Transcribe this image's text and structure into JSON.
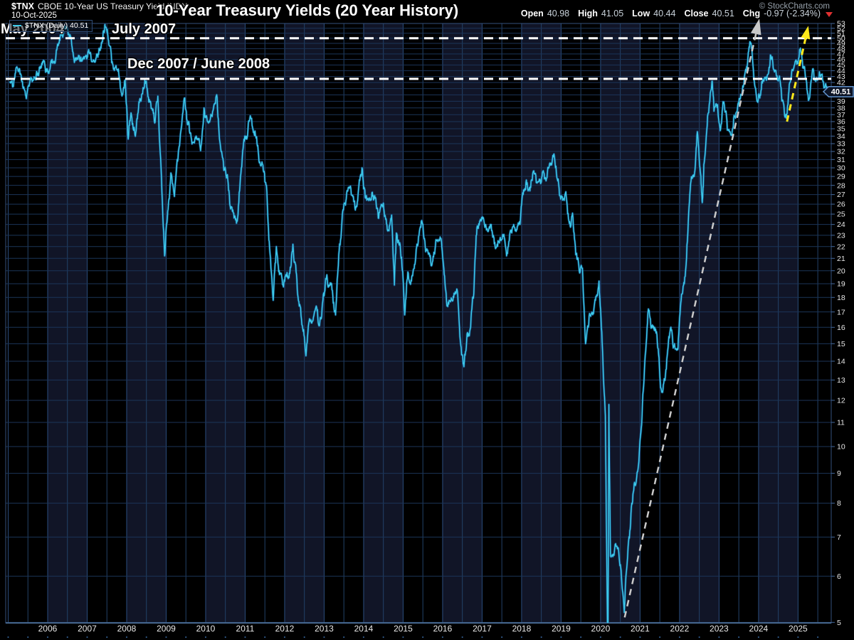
{
  "header": {
    "symbol": "$TNX",
    "description": "CBOE 10-Year US Treasury Yield INDX",
    "date": "10-Oct-2025",
    "legend_label": "$TNX (Daily) 40.51"
  },
  "title": "10-Year Treasury Yields (20 Year History)",
  "credit": "© StockCharts.com",
  "quote": {
    "open_label": "Open",
    "open_value": "40.98",
    "high_label": "High",
    "high_value": "41.05",
    "low_label": "Low",
    "low_value": "40.44",
    "close_label": "Close",
    "close_value": "40.51",
    "chg_label": "Chg",
    "chg_value": "-0.97 (-2.34%)"
  },
  "colors": {
    "background": "#000000",
    "band": "#111527",
    "grid_v_year": "#2a4d7d",
    "grid_v_half": "#234268",
    "grid_h": "#1b3558",
    "frame": "#33517c",
    "axis_bottom": "#587fae",
    "tick": "#44699c",
    "tick_label": "#e8e8e8",
    "line": "#3cc9e8",
    "line_glow": "#1866b4",
    "dashed_white": "#ffffff",
    "arrow_gray": "#c9c9c9",
    "arrow_yellow": "#ffe81a",
    "tag_bg": "#0d1526",
    "tag_border": "#6193cd",
    "tag_text": "#ffffff",
    "dot": "#2d5584",
    "chg_triangle": "#e03030"
  },
  "chart_data": {
    "type": "line",
    "title": "10-Year Treasury Yields (20 Year History)",
    "y_scale": "log",
    "x_domain": [
      2004.937,
      2025.84
    ],
    "y_domain": [
      4.99,
      53.0
    ],
    "x_tick_min": 2006,
    "x_tick_max": 2025,
    "x_tick_step": 1,
    "y_tick_min": 5,
    "y_tick_max": 53,
    "y_tick_step": 1,
    "grid": true,
    "legend_position": "top-left",
    "last_value": 40.51,
    "resistance_lines": [
      {
        "value": 50.0,
        "labels": [
          "May 2004",
          "July 2007"
        ]
      },
      {
        "value": 42.6,
        "labels": [
          "Dec 2007 / June 2008"
        ]
      }
    ],
    "trend_arrows": [
      {
        "name": "uptrend-2020-2023",
        "color": "#c9c9c9",
        "from": [
          2020.61,
          5.1
        ],
        "to": [
          2024.02,
          54.0
        ],
        "head_l": 22,
        "head_w": 15,
        "width": 2.5
      },
      {
        "name": "uptrend-2024-2025",
        "color": "#ffe81a",
        "from": [
          2024.72,
          36.0
        ],
        "to": [
          2025.26,
          52.5
        ],
        "head_l": 18,
        "head_w": 13,
        "width": 3
      }
    ],
    "series": [
      {
        "name": "$TNX (Daily)",
        "color": "#3cc9e8",
        "points": [
          [
            2005.04,
            42.2
          ],
          [
            2005.12,
            41.3
          ],
          [
            2005.21,
            44.6
          ],
          [
            2005.29,
            44.3
          ],
          [
            2005.37,
            41.3
          ],
          [
            2005.46,
            39.4
          ],
          [
            2005.54,
            41.8
          ],
          [
            2005.62,
            42.4
          ],
          [
            2005.71,
            43.3
          ],
          [
            2005.79,
            44.6
          ],
          [
            2005.87,
            45.6
          ],
          [
            2005.96,
            44.0
          ],
          [
            2006.04,
            43.9
          ],
          [
            2006.12,
            45.7
          ],
          [
            2006.21,
            46.7
          ],
          [
            2006.29,
            49.0
          ],
          [
            2006.37,
            50.8
          ],
          [
            2006.46,
            52.2
          ],
          [
            2006.54,
            50.8
          ],
          [
            2006.62,
            48.2
          ],
          [
            2006.71,
            46.2
          ],
          [
            2006.79,
            46.4
          ],
          [
            2006.87,
            45.7
          ],
          [
            2006.96,
            46.5
          ],
          [
            2007.04,
            47.8
          ],
          [
            2007.12,
            45.6
          ],
          [
            2007.21,
            45.7
          ],
          [
            2007.29,
            46.9
          ],
          [
            2007.37,
            49.0
          ],
          [
            2007.44,
            51.5
          ],
          [
            2007.48,
            52.2
          ],
          [
            2007.54,
            49.6
          ],
          [
            2007.62,
            45.4
          ],
          [
            2007.71,
            44.6
          ],
          [
            2007.79,
            44.3
          ],
          [
            2007.87,
            40.2
          ],
          [
            2007.96,
            42.4
          ],
          [
            2008.04,
            33.6
          ],
          [
            2008.12,
            37.0
          ],
          [
            2008.21,
            34.2
          ],
          [
            2008.29,
            37.3
          ],
          [
            2008.37,
            39.3
          ],
          [
            2008.46,
            42.4
          ],
          [
            2008.54,
            39.7
          ],
          [
            2008.62,
            37.9
          ],
          [
            2008.71,
            35.8
          ],
          [
            2008.79,
            39.8
          ],
          [
            2008.87,
            30.0
          ],
          [
            2008.96,
            21.2
          ],
          [
            2009.04,
            25.3
          ],
          [
            2009.12,
            29.4
          ],
          [
            2009.21,
            26.8
          ],
          [
            2009.29,
            30.8
          ],
          [
            2009.37,
            34.6
          ],
          [
            2009.46,
            39.5
          ],
          [
            2009.54,
            35.6
          ],
          [
            2009.62,
            34.4
          ],
          [
            2009.71,
            33.1
          ],
          [
            2009.79,
            33.6
          ],
          [
            2009.87,
            32.1
          ],
          [
            2009.96,
            38.0
          ],
          [
            2010.04,
            36.1
          ],
          [
            2010.12,
            36.4
          ],
          [
            2010.21,
            38.4
          ],
          [
            2010.29,
            39.6
          ],
          [
            2010.37,
            32.9
          ],
          [
            2010.46,
            29.7
          ],
          [
            2010.54,
            29.1
          ],
          [
            2010.62,
            25.8
          ],
          [
            2010.71,
            25.1
          ],
          [
            2010.79,
            24.3
          ],
          [
            2010.87,
            28.0
          ],
          [
            2010.96,
            33.0
          ],
          [
            2011.04,
            33.6
          ],
          [
            2011.12,
            36.5
          ],
          [
            2011.21,
            34.5
          ],
          [
            2011.29,
            33.9
          ],
          [
            2011.37,
            30.7
          ],
          [
            2011.46,
            29.7
          ],
          [
            2011.54,
            28.0
          ],
          [
            2011.62,
            21.8
          ],
          [
            2011.71,
            17.8
          ],
          [
            2011.79,
            22.0
          ],
          [
            2011.87,
            19.7
          ],
          [
            2011.96,
            18.9
          ],
          [
            2012.04,
            19.7
          ],
          [
            2012.12,
            19.8
          ],
          [
            2012.21,
            22.2
          ],
          [
            2012.29,
            19.9
          ],
          [
            2012.37,
            17.4
          ],
          [
            2012.46,
            15.9
          ],
          [
            2012.54,
            14.3
          ],
          [
            2012.62,
            16.4
          ],
          [
            2012.71,
            16.4
          ],
          [
            2012.79,
            17.3
          ],
          [
            2012.87,
            16.1
          ],
          [
            2012.96,
            17.6
          ],
          [
            2013.04,
            19.4
          ],
          [
            2013.12,
            18.9
          ],
          [
            2013.21,
            18.5
          ],
          [
            2013.29,
            16.8
          ],
          [
            2013.37,
            21.3
          ],
          [
            2013.46,
            24.9
          ],
          [
            2013.54,
            25.9
          ],
          [
            2013.62,
            27.8
          ],
          [
            2013.71,
            26.9
          ],
          [
            2013.79,
            25.4
          ],
          [
            2013.87,
            27.5
          ],
          [
            2013.96,
            30.0
          ],
          [
            2014.04,
            26.7
          ],
          [
            2014.12,
            26.6
          ],
          [
            2014.21,
            27.2
          ],
          [
            2014.29,
            26.6
          ],
          [
            2014.37,
            24.6
          ],
          [
            2014.46,
            25.9
          ],
          [
            2014.54,
            24.9
          ],
          [
            2014.62,
            23.5
          ],
          [
            2014.71,
            24.9
          ],
          [
            2014.78,
            18.9
          ],
          [
            2014.83,
            23.2
          ],
          [
            2014.87,
            22.4
          ],
          [
            2014.96,
            21.1
          ],
          [
            2015.04,
            16.8
          ],
          [
            2015.12,
            19.9
          ],
          [
            2015.21,
            19.2
          ],
          [
            2015.29,
            20.5
          ],
          [
            2015.37,
            22.1
          ],
          [
            2015.46,
            24.3
          ],
          [
            2015.54,
            22.7
          ],
          [
            2015.62,
            21.7
          ],
          [
            2015.71,
            20.4
          ],
          [
            2015.79,
            21.4
          ],
          [
            2015.87,
            22.6
          ],
          [
            2015.96,
            22.7
          ],
          [
            2016.04,
            19.7
          ],
          [
            2016.12,
            17.4
          ],
          [
            2016.21,
            17.8
          ],
          [
            2016.29,
            18.3
          ],
          [
            2016.37,
            18.5
          ],
          [
            2016.46,
            14.9
          ],
          [
            2016.54,
            13.7
          ],
          [
            2016.62,
            15.6
          ],
          [
            2016.71,
            16.0
          ],
          [
            2016.79,
            18.3
          ],
          [
            2016.87,
            23.7
          ],
          [
            2016.96,
            24.5
          ],
          [
            2017.04,
            24.5
          ],
          [
            2017.12,
            23.6
          ],
          [
            2017.21,
            24.0
          ],
          [
            2017.29,
            22.9
          ],
          [
            2017.37,
            22.0
          ],
          [
            2017.46,
            22.8
          ],
          [
            2017.54,
            22.9
          ],
          [
            2017.62,
            21.2
          ],
          [
            2017.71,
            23.3
          ],
          [
            2017.79,
            23.8
          ],
          [
            2017.87,
            23.5
          ],
          [
            2017.96,
            24.0
          ],
          [
            2018.04,
            27.0
          ],
          [
            2018.12,
            28.6
          ],
          [
            2018.21,
            27.4
          ],
          [
            2018.29,
            29.5
          ],
          [
            2018.37,
            28.3
          ],
          [
            2018.46,
            28.5
          ],
          [
            2018.54,
            29.6
          ],
          [
            2018.62,
            28.5
          ],
          [
            2018.71,
            30.5
          ],
          [
            2018.79,
            31.5
          ],
          [
            2018.87,
            30.2
          ],
          [
            2018.96,
            26.9
          ],
          [
            2019.04,
            26.4
          ],
          [
            2019.12,
            27.3
          ],
          [
            2019.21,
            24.1
          ],
          [
            2019.29,
            25.1
          ],
          [
            2019.37,
            21.3
          ],
          [
            2019.46,
            20.0
          ],
          [
            2019.54,
            20.2
          ],
          [
            2019.62,
            15.0
          ],
          [
            2019.71,
            16.7
          ],
          [
            2019.79,
            16.9
          ],
          [
            2019.87,
            17.8
          ],
          [
            2019.96,
            19.2
          ],
          [
            2020.04,
            15.1
          ],
          [
            2020.12,
            11.3
          ],
          [
            2020.185,
            4.2
          ],
          [
            2020.21,
            11.8
          ],
          [
            2020.25,
            6.5
          ],
          [
            2020.37,
            6.8
          ],
          [
            2020.46,
            6.6
          ],
          [
            2020.54,
            5.8
          ],
          [
            2020.6,
            5.2
          ],
          [
            2020.71,
            6.9
          ],
          [
            2020.79,
            8.0
          ],
          [
            2020.87,
            8.6
          ],
          [
            2020.96,
            9.3
          ],
          [
            2021.04,
            10.9
          ],
          [
            2021.12,
            14.0
          ],
          [
            2021.21,
            17.2
          ],
          [
            2021.29,
            16.0
          ],
          [
            2021.37,
            16.0
          ],
          [
            2021.46,
            14.7
          ],
          [
            2021.54,
            12.5
          ],
          [
            2021.62,
            13.0
          ],
          [
            2021.71,
            14.8
          ],
          [
            2021.79,
            15.8
          ],
          [
            2021.87,
            15.0
          ],
          [
            2021.96,
            14.7
          ],
          [
            2022.04,
            17.8
          ],
          [
            2022.12,
            19.0
          ],
          [
            2022.21,
            23.3
          ],
          [
            2022.29,
            28.5
          ],
          [
            2022.37,
            29.0
          ],
          [
            2022.45,
            34.6
          ],
          [
            2022.54,
            29.0
          ],
          [
            2022.58,
            26.5
          ],
          [
            2022.62,
            30.5
          ],
          [
            2022.71,
            36.8
          ],
          [
            2022.82,
            42.2
          ],
          [
            2022.87,
            37.5
          ],
          [
            2022.96,
            38.5
          ],
          [
            2023.04,
            35.0
          ],
          [
            2023.12,
            38.9
          ],
          [
            2023.21,
            34.8
          ],
          [
            2023.29,
            34.3
          ],
          [
            2023.37,
            36.5
          ],
          [
            2023.46,
            37.5
          ],
          [
            2023.54,
            39.5
          ],
          [
            2023.62,
            41.5
          ],
          [
            2023.71,
            44.5
          ],
          [
            2023.79,
            49.3
          ],
          [
            2023.87,
            44.0
          ],
          [
            2023.96,
            39.0
          ],
          [
            2024.04,
            40.0
          ],
          [
            2024.12,
            42.3
          ],
          [
            2024.21,
            42.5
          ],
          [
            2024.3,
            46.8
          ],
          [
            2024.37,
            44.5
          ],
          [
            2024.46,
            43.0
          ],
          [
            2024.54,
            42.5
          ],
          [
            2024.62,
            39.0
          ],
          [
            2024.7,
            36.5
          ],
          [
            2024.79,
            42.0
          ],
          [
            2024.87,
            44.0
          ],
          [
            2024.96,
            45.5
          ],
          [
            2025.04,
            47.8
          ],
          [
            2025.12,
            44.5
          ],
          [
            2025.21,
            42.3
          ],
          [
            2025.27,
            39.2
          ],
          [
            2025.37,
            44.3
          ],
          [
            2025.46,
            42.5
          ],
          [
            2025.54,
            43.8
          ],
          [
            2025.62,
            42.5
          ],
          [
            2025.71,
            41.4
          ],
          [
            2025.78,
            40.51
          ]
        ]
      }
    ]
  }
}
